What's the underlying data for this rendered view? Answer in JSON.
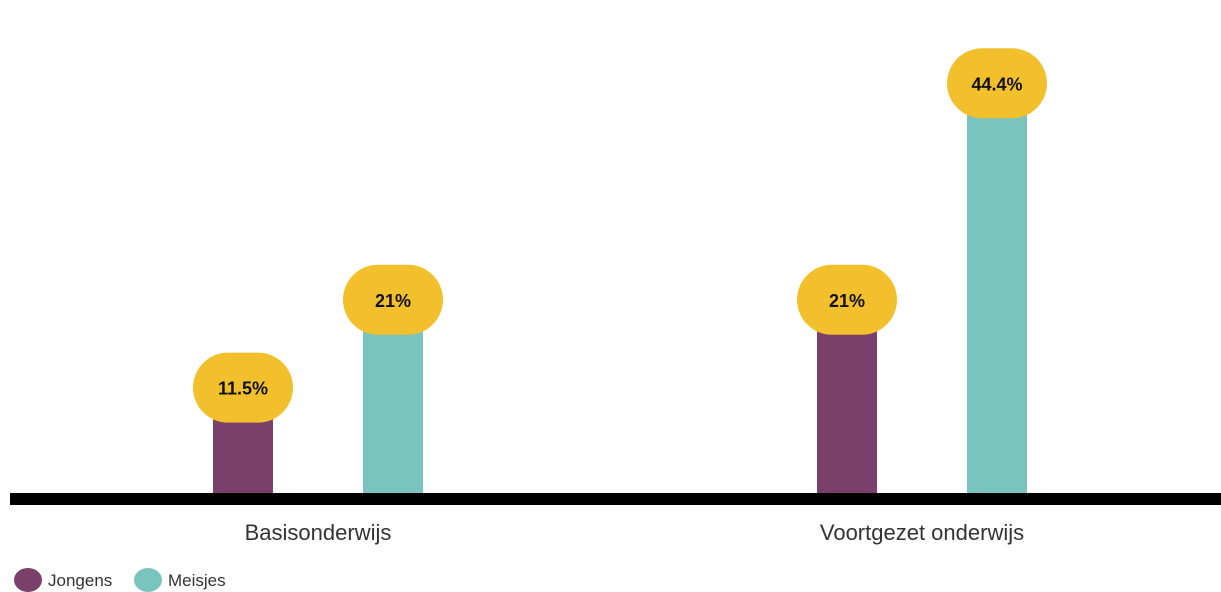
{
  "chart_data": {
    "type": "bar",
    "categories": [
      "Basisonderwijs",
      "Voortgezet onderwijs"
    ],
    "series": [
      {
        "name": "Jongens",
        "color": "#7b3f6b",
        "values": [
          11.5,
          21
        ],
        "labels": [
          "11.5%",
          "21%"
        ]
      },
      {
        "name": "Meisjes",
        "color": "#7ac4bf",
        "values": [
          21,
          44.4
        ],
        "labels": [
          "21%",
          "44.4%"
        ]
      }
    ],
    "label_bubble_color": "#f2c02c",
    "axis_color": "#000000",
    "ylim": [
      0,
      50
    ],
    "grid": false,
    "legend_position": "bottom-left"
  }
}
